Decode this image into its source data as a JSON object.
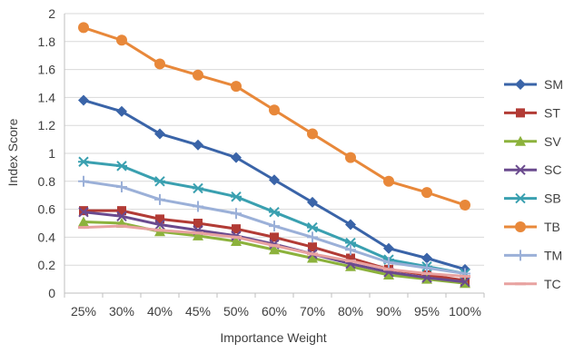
{
  "chart_data": {
    "type": "line",
    "title": "",
    "xlabel": "Importance Weight",
    "ylabel": "Index Score",
    "ylim": [
      0,
      2
    ],
    "yticks": [
      "0",
      "0.2",
      "0.4",
      "0.6",
      "0.8",
      "1",
      "1.2",
      "1.4",
      "1.6",
      "1.8",
      "2"
    ],
    "grid": true,
    "legend_position": "right",
    "categories": [
      "25%",
      "30%",
      "40%",
      "45%",
      "50%",
      "60%",
      "70%",
      "80%",
      "90%",
      "95%",
      "100%"
    ],
    "series": [
      {
        "name": "SM",
        "color": "#3A64A8",
        "marker": "diamond",
        "values": [
          1.38,
          1.3,
          1.14,
          1.06,
          0.97,
          0.81,
          0.65,
          0.49,
          0.32,
          0.25,
          0.17
        ]
      },
      {
        "name": "ST",
        "color": "#B23B35",
        "marker": "square",
        "values": [
          0.59,
          0.59,
          0.53,
          0.5,
          0.46,
          0.4,
          0.33,
          0.25,
          0.17,
          0.13,
          0.09
        ]
      },
      {
        "name": "SV",
        "color": "#8CB23C",
        "marker": "triangle",
        "values": [
          0.51,
          0.5,
          0.44,
          0.41,
          0.37,
          0.31,
          0.25,
          0.19,
          0.13,
          0.1,
          0.07
        ]
      },
      {
        "name": "SC",
        "color": "#6A4A8E",
        "marker": "x",
        "values": [
          0.58,
          0.55,
          0.49,
          0.45,
          0.41,
          0.35,
          0.28,
          0.21,
          0.15,
          0.11,
          0.08
        ]
      },
      {
        "name": "SB",
        "color": "#3AA0B0",
        "marker": "asterisk",
        "values": [
          0.94,
          0.91,
          0.8,
          0.75,
          0.69,
          0.58,
          0.47,
          0.36,
          0.24,
          0.19,
          0.14
        ]
      },
      {
        "name": "TB",
        "color": "#E8883A",
        "marker": "circle",
        "values": [
          1.9,
          1.81,
          1.64,
          1.56,
          1.48,
          1.31,
          1.14,
          0.97,
          0.8,
          0.72,
          0.63
        ]
      },
      {
        "name": "TM",
        "color": "#9BB0D8",
        "marker": "plus",
        "values": [
          0.8,
          0.76,
          0.67,
          0.62,
          0.57,
          0.48,
          0.4,
          0.31,
          0.22,
          0.18,
          0.14
        ]
      },
      {
        "name": "TC",
        "color": "#E8A2A0",
        "marker": "dash",
        "values": [
          0.47,
          0.48,
          0.45,
          0.43,
          0.4,
          0.34,
          0.28,
          0.23,
          0.17,
          0.14,
          0.12
        ]
      }
    ]
  }
}
